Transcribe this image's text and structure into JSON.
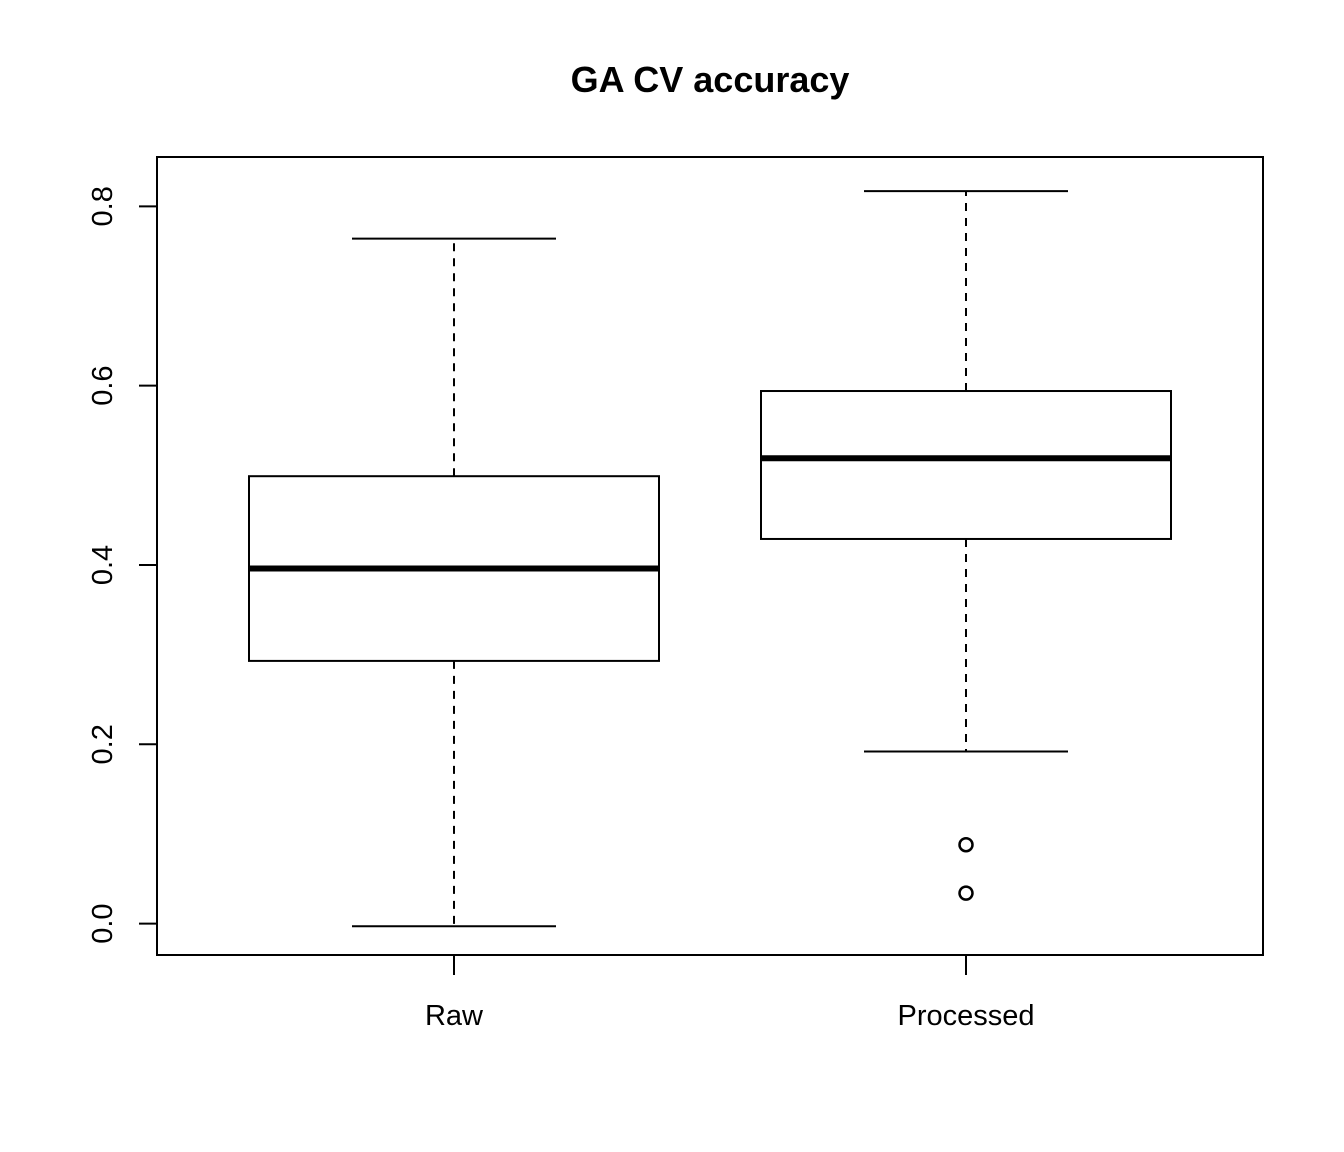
{
  "chart_data": {
    "type": "boxplot",
    "title": "GA CV accuracy",
    "xlabel": "",
    "ylabel": "",
    "ylim": [
      -0.035,
      0.855
    ],
    "yticks": [
      0.0,
      0.2,
      0.4,
      0.6,
      0.8
    ],
    "ytick_labels": [
      "0.0",
      "0.2",
      "0.4",
      "0.6",
      "0.8"
    ],
    "grid": false,
    "legend": "none",
    "categories": [
      "Raw",
      "Processed"
    ],
    "boxes": [
      {
        "name": "Raw",
        "whisker_low": -0.003,
        "q1": 0.293,
        "median": 0.396,
        "q3": 0.499,
        "whisker_high": 0.764,
        "outliers": []
      },
      {
        "name": "Processed",
        "whisker_low": 0.192,
        "q1": 0.429,
        "median": 0.519,
        "q3": 0.594,
        "whisker_high": 0.817,
        "outliers": [
          0.088,
          0.034
        ]
      }
    ],
    "colors": {
      "stroke": "#000000",
      "background": "#ffffff"
    }
  }
}
